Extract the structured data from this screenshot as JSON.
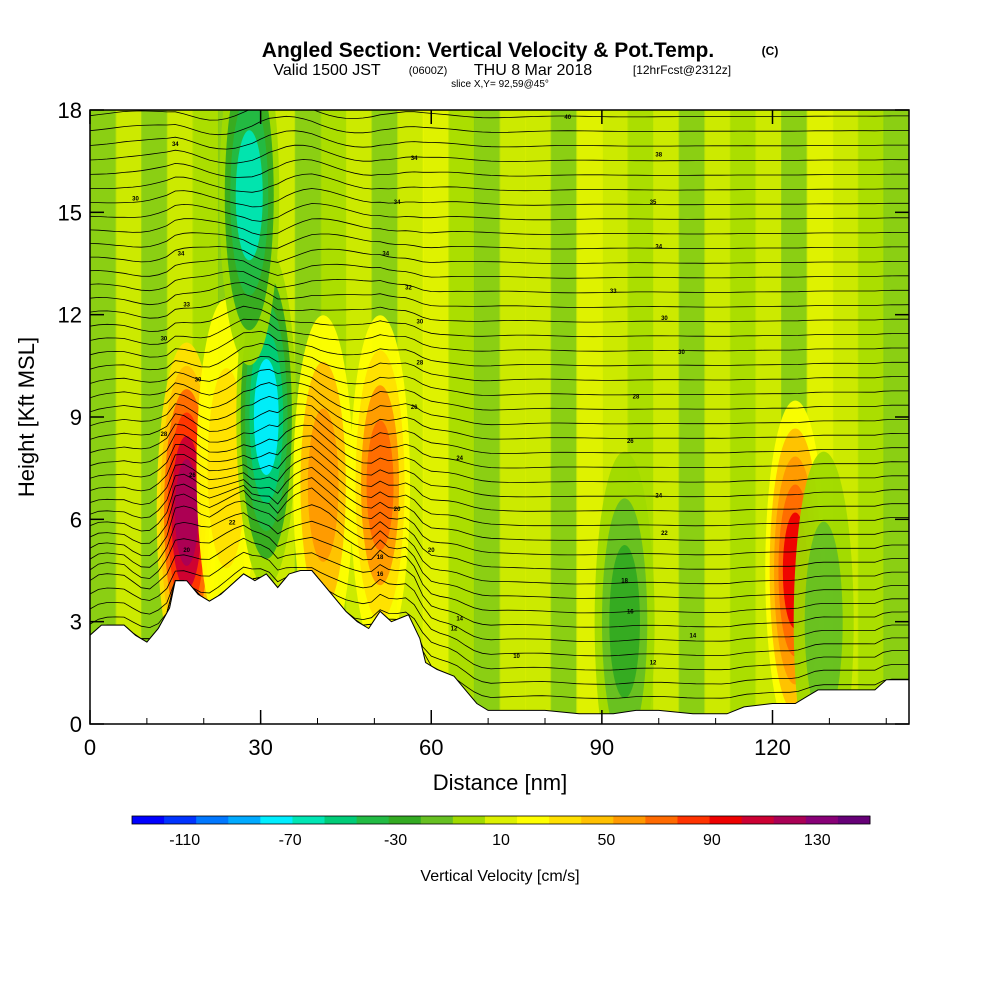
{
  "header": {
    "title": "Angled Section: Vertical Velocity & Pot.Temp.",
    "title_unit": "(C)",
    "valid_prefix": "Valid 1500 JST",
    "valid_utc": "(0600Z)",
    "valid_date": "THU 8 Mar 2018",
    "forecast": "[12hrFcst@2312z]",
    "slice": "slice X,Y= 92,59@45°"
  },
  "chart_data": {
    "type": "heatmap",
    "title": "Angled Section: Vertical Velocity & Pot.Temp. (C)",
    "xlabel": "Distance [nm]",
    "ylabel": "Height [Kft MSL]",
    "xlim": [
      0,
      144
    ],
    "ylim": [
      0,
      18
    ],
    "x_ticks": [
      "0",
      "30",
      "60",
      "90",
      "120"
    ],
    "y_ticks": [
      "0",
      "3",
      "6",
      "9",
      "12",
      "15",
      "18"
    ],
    "colorbar": {
      "label": "Vertical Velocity [cm/s]",
      "range": [
        -130,
        150
      ],
      "tick_labels": [
        "-110",
        "-70",
        "-30",
        "10",
        "50",
        "90",
        "130"
      ],
      "colors": [
        "#0000ff",
        "#0033ff",
        "#0077ff",
        "#00aaff",
        "#00eeff",
        "#00e6b4",
        "#00cc78",
        "#22bb44",
        "#33aa22",
        "#66c022",
        "#a0da00",
        "#dcf000",
        "#ffff00",
        "#ffe000",
        "#ffc000",
        "#ff9900",
        "#ff6a00",
        "#ff3300",
        "#ee0000",
        "#cc0033",
        "#aa0055",
        "#880077",
        "#660077"
      ]
    },
    "velocity_features": [
      {
        "x": 17,
        "z": 6.2,
        "value": 120
      },
      {
        "x": 24,
        "z": 7.5,
        "value": 40
      },
      {
        "x": 31,
        "z": 9.0,
        "value": -90
      },
      {
        "x": 28,
        "z": 15.5,
        "value": -80
      },
      {
        "x": 41,
        "z": 7.0,
        "value": 60
      },
      {
        "x": 51,
        "z": 7.0,
        "value": 70
      },
      {
        "x": 94,
        "z": 3.0,
        "value": -50
      },
      {
        "x": 124,
        "z": 4.5,
        "value": 90
      },
      {
        "x": 129,
        "z": 3.0,
        "value": -30
      }
    ],
    "terrain": [
      [
        0,
        2.6
      ],
      [
        2,
        2.9
      ],
      [
        6,
        2.9
      ],
      [
        8,
        2.6
      ],
      [
        10,
        2.4
      ],
      [
        12,
        2.8
      ],
      [
        14,
        3.4
      ],
      [
        15,
        4.2
      ],
      [
        17,
        4.2
      ],
      [
        19,
        3.8
      ],
      [
        21,
        3.6
      ],
      [
        23,
        3.8
      ],
      [
        25,
        4.1
      ],
      [
        27,
        4.4
      ],
      [
        29,
        4.2
      ],
      [
        31,
        4.4
      ],
      [
        33,
        4.0
      ],
      [
        35,
        4.4
      ],
      [
        37,
        4.5
      ],
      [
        39,
        4.5
      ],
      [
        41,
        4.1
      ],
      [
        43,
        3.7
      ],
      [
        45,
        3.3
      ],
      [
        47,
        3.0
      ],
      [
        49,
        2.8
      ],
      [
        51,
        3.3
      ],
      [
        53,
        3.0
      ],
      [
        56,
        3.2
      ],
      [
        58,
        2.5
      ],
      [
        59,
        1.8
      ],
      [
        61,
        1.6
      ],
      [
        64,
        1.4
      ],
      [
        66,
        1.0
      ],
      [
        68,
        0.6
      ],
      [
        70,
        0.4
      ],
      [
        74,
        0.4
      ],
      [
        80,
        0.4
      ],
      [
        86,
        0.3
      ],
      [
        92,
        0.3
      ],
      [
        96,
        0.4
      ],
      [
        100,
        0.4
      ],
      [
        106,
        0.3
      ],
      [
        112,
        0.3
      ],
      [
        115,
        0.5
      ],
      [
        120,
        0.6
      ],
      [
        124,
        0.6
      ],
      [
        126,
        0.8
      ],
      [
        128,
        1.0
      ],
      [
        132,
        1.0
      ],
      [
        138,
        1.0
      ],
      [
        140,
        1.3
      ],
      [
        144,
        1.3
      ]
    ],
    "isentrope_labels": [
      {
        "x": 15,
        "z": 17.0,
        "text": "34"
      },
      {
        "x": 8,
        "z": 15.4,
        "text": "30"
      },
      {
        "x": 16,
        "z": 13.8,
        "text": "34"
      },
      {
        "x": 17,
        "z": 12.3,
        "text": "33"
      },
      {
        "x": 13,
        "z": 11.3,
        "text": "30"
      },
      {
        "x": 19,
        "z": 10.1,
        "text": "30"
      },
      {
        "x": 13,
        "z": 8.5,
        "text": "28"
      },
      {
        "x": 18,
        "z": 7.3,
        "text": "26"
      },
      {
        "x": 25,
        "z": 5.9,
        "text": "22"
      },
      {
        "x": 17,
        "z": 5.1,
        "text": "20"
      },
      {
        "x": 57,
        "z": 16.6,
        "text": "34"
      },
      {
        "x": 54,
        "z": 15.3,
        "text": "34"
      },
      {
        "x": 52,
        "z": 13.8,
        "text": "34"
      },
      {
        "x": 56,
        "z": 12.8,
        "text": "32"
      },
      {
        "x": 58,
        "z": 11.8,
        "text": "30"
      },
      {
        "x": 58,
        "z": 10.6,
        "text": "28"
      },
      {
        "x": 57,
        "z": 9.3,
        "text": "26"
      },
      {
        "x": 65,
        "z": 7.8,
        "text": "24"
      },
      {
        "x": 54,
        "z": 6.3,
        "text": "20"
      },
      {
        "x": 60,
        "z": 5.1,
        "text": "20"
      },
      {
        "x": 51,
        "z": 4.9,
        "text": "18"
      },
      {
        "x": 51,
        "z": 4.4,
        "text": "16"
      },
      {
        "x": 65,
        "z": 3.1,
        "text": "14"
      },
      {
        "x": 64,
        "z": 2.8,
        "text": "12"
      },
      {
        "x": 75,
        "z": 2.0,
        "text": "10"
      },
      {
        "x": 84,
        "z": 17.8,
        "text": "40"
      },
      {
        "x": 100,
        "z": 16.7,
        "text": "38"
      },
      {
        "x": 99,
        "z": 15.3,
        "text": "35"
      },
      {
        "x": 100,
        "z": 14.0,
        "text": "34"
      },
      {
        "x": 92,
        "z": 12.7,
        "text": "33"
      },
      {
        "x": 101,
        "z": 11.9,
        "text": "30"
      },
      {
        "x": 104,
        "z": 10.9,
        "text": "30"
      },
      {
        "x": 96,
        "z": 9.6,
        "text": "28"
      },
      {
        "x": 95,
        "z": 8.3,
        "text": "26"
      },
      {
        "x": 100,
        "z": 6.7,
        "text": "24"
      },
      {
        "x": 101,
        "z": 5.6,
        "text": "22"
      },
      {
        "x": 94,
        "z": 4.2,
        "text": "18"
      },
      {
        "x": 95,
        "z": 3.3,
        "text": "16"
      },
      {
        "x": 106,
        "z": 2.6,
        "text": "14"
      },
      {
        "x": 99,
        "z": 1.8,
        "text": "12"
      }
    ]
  }
}
